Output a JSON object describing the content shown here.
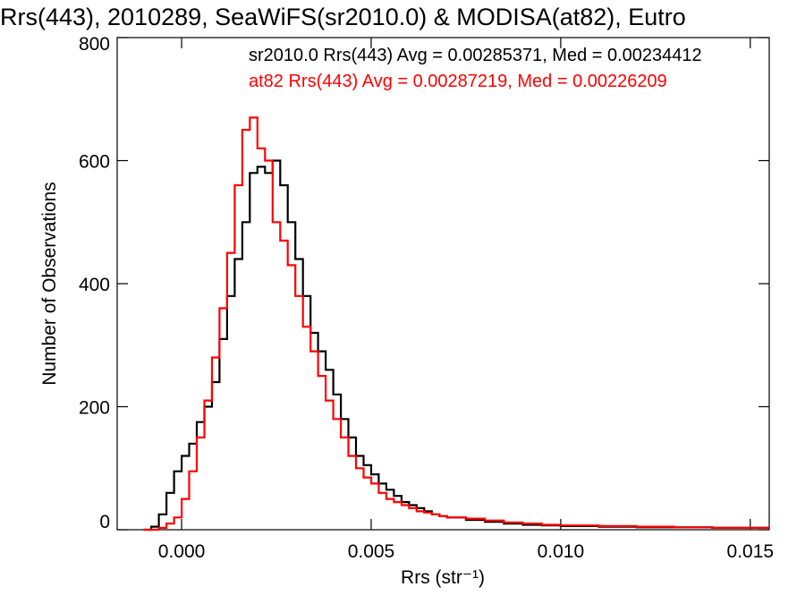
{
  "chart_data": {
    "type": "line",
    "step": true,
    "title": "Rrs(443), 2010289, SeaWiFS(sr2010.0) & MODISA(at82), Eutro",
    "xlabel": "Rrs (str⁻¹)",
    "ylabel": "Number of Observations",
    "xlim": [
      -0.0017,
      0.0155
    ],
    "ylim": [
      0,
      800
    ],
    "x_ticks": [
      0.0,
      0.005,
      0.01,
      0.015
    ],
    "x_tick_labels": [
      "0.000",
      "0.005",
      "0.010",
      "0.015"
    ],
    "y_ticks": [
      0,
      200,
      400,
      600,
      800
    ],
    "y_tick_labels": [
      "0",
      "200",
      "400",
      "600",
      "800"
    ],
    "grid": false,
    "legend_position": "top-right",
    "series": [
      {
        "legend": "sr2010.0 Rrs(443) Avg = 0.00285371, Med = 0.00234412",
        "color": "#000000",
        "x": [
          -0.001,
          -0.0008,
          -0.0006,
          -0.0004,
          -0.0002,
          0.0,
          0.0002,
          0.0004,
          0.0006,
          0.0008,
          0.001,
          0.0012,
          0.0014,
          0.0016,
          0.0018,
          0.002,
          0.0022,
          0.0024,
          0.0026,
          0.0028,
          0.003,
          0.0032,
          0.0034,
          0.0036,
          0.0038,
          0.004,
          0.0042,
          0.0044,
          0.0046,
          0.0048,
          0.005,
          0.0052,
          0.0054,
          0.0056,
          0.0058,
          0.006,
          0.0062,
          0.0064,
          0.0066,
          0.0068,
          0.007,
          0.0075,
          0.008,
          0.0085,
          0.009,
          0.0095,
          0.01,
          0.011,
          0.012,
          0.013,
          0.014,
          0.015
        ],
        "values": [
          0,
          5,
          25,
          60,
          95,
          120,
          140,
          175,
          200,
          240,
          310,
          380,
          440,
          500,
          580,
          590,
          580,
          600,
          560,
          500,
          440,
          380,
          320,
          290,
          260,
          220,
          180,
          150,
          120,
          105,
          90,
          75,
          65,
          55,
          45,
          40,
          35,
          30,
          25,
          22,
          20,
          16,
          13,
          10,
          8,
          7,
          6,
          5,
          4,
          4,
          3,
          3
        ]
      },
      {
        "legend": "at82 Rrs(443) Avg = 0.00287219, Med = 0.00226209",
        "color": "#ff0000",
        "x": [
          -0.001,
          -0.0008,
          -0.0006,
          -0.0004,
          -0.0002,
          0.0,
          0.0002,
          0.0004,
          0.0006,
          0.0008,
          0.001,
          0.0012,
          0.0014,
          0.0016,
          0.0018,
          0.002,
          0.0022,
          0.0024,
          0.0026,
          0.0028,
          0.003,
          0.0032,
          0.0034,
          0.0036,
          0.0038,
          0.004,
          0.0042,
          0.0044,
          0.0046,
          0.0048,
          0.005,
          0.0052,
          0.0054,
          0.0056,
          0.0058,
          0.006,
          0.0062,
          0.0064,
          0.0066,
          0.0068,
          0.007,
          0.0075,
          0.008,
          0.0085,
          0.009,
          0.0095,
          0.01,
          0.011,
          0.012,
          0.013,
          0.014,
          0.015
        ],
        "values": [
          0,
          0,
          3,
          10,
          20,
          50,
          95,
          150,
          210,
          280,
          360,
          450,
          560,
          650,
          670,
          620,
          600,
          500,
          470,
          430,
          380,
          330,
          290,
          250,
          210,
          180,
          150,
          120,
          100,
          85,
          75,
          60,
          50,
          45,
          40,
          35,
          30,
          28,
          25,
          22,
          20,
          18,
          15,
          12,
          10,
          8,
          7,
          6,
          5,
          4,
          3,
          3
        ]
      }
    ]
  }
}
